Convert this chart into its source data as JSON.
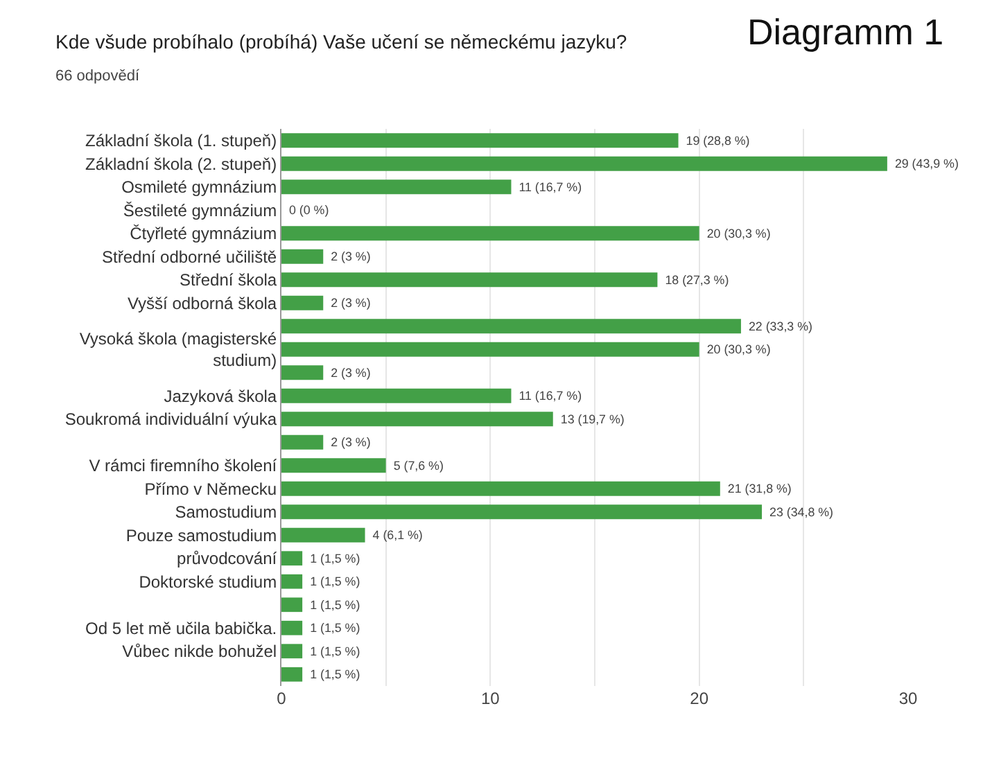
{
  "chart_data": {
    "type": "bar",
    "orientation": "horizontal",
    "title": "Kde všude probíhalo (probíhá) Vaše učení se německému jazyku?",
    "subtitle": "66 odpovědí",
    "annotations": [
      "Diagramm 1"
    ],
    "categories": [
      "Základní škola (1. stupeň)",
      "Základní škola (2. stupeň)",
      "Osmileté gymnázium",
      "Šestileté gymnázium",
      "Čtyřleté gymnázium",
      "Střední odborné učiliště",
      "Střední škola",
      "Vyšší odborná škola",
      null,
      "Vysoká škola (magisterské\nstudium)",
      null,
      "Jazyková škola",
      "Soukromá individuální výuka",
      null,
      "V rámci firemního školení",
      "Přímo v Německu",
      "Samostudium",
      "Pouze samostudium",
      "průvodcování",
      "Doktorské studium",
      null,
      "Od 5 let mě učila babička.",
      "Vůbec nikde bohužel",
      null
    ],
    "values": [
      19,
      29,
      11,
      0,
      20,
      2,
      18,
      2,
      22,
      20,
      2,
      11,
      13,
      2,
      5,
      21,
      23,
      4,
      1,
      1,
      1,
      1,
      1,
      1
    ],
    "value_labels": [
      "19 (28,8 %)",
      "29 (43,9 %)",
      "11 (16,7 %)",
      "0 (0 %)",
      "20 (30,3 %)",
      "2 (3 %)",
      "18 (27,3 %)",
      "2 (3 %)",
      "22 (33,3 %)",
      "20 (30,3 %)",
      "2 (3 %)",
      "11 (16,7 %)",
      "13 (19,7 %)",
      "2 (3 %)",
      "5 (7,6 %)",
      "21 (31,8 %)",
      "23 (34,8 %)",
      "4 (6,1 %)",
      "1 (1,5 %)",
      "1 (1,5 %)",
      "1 (1,5 %)",
      "1 (1,5 %)",
      "1 (1,5 %)",
      "1 (1,5 %)"
    ],
    "color": "#43a047",
    "xlim": [
      0,
      30
    ],
    "xticks": [
      0,
      {
        "value": 5,
        "label": null
      },
      10,
      {
        "value": 15,
        "label": null
      },
      20,
      {
        "value": 25,
        "label": null
      },
      30
    ],
    "grid": "x"
  }
}
